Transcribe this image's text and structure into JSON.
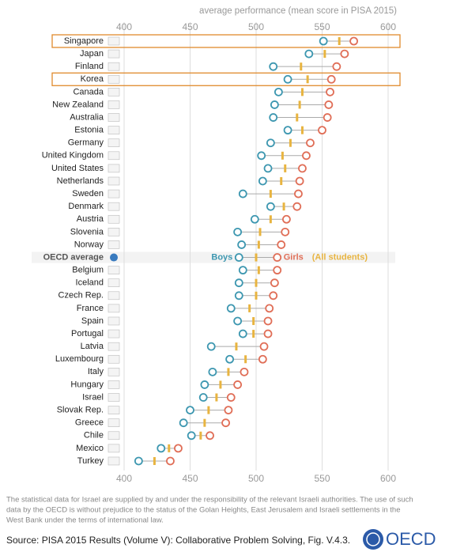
{
  "chart_data": {
    "type": "dumbbell",
    "x_label": "average performance (mean score in PISA 2015)",
    "categories": [
      "Singapore",
      "Japan",
      "Finland",
      "Korea",
      "Canada",
      "New Zealand",
      "Australia",
      "Estonia",
      "Germany",
      "United Kingdom",
      "United States",
      "Netherlands",
      "Sweden",
      "Denmark",
      "Austria",
      "Slovenia",
      "Norway",
      "OECD average",
      "Belgium",
      "Iceland",
      "Czech Rep.",
      "France",
      "Spain",
      "Portugal",
      "Latvia",
      "Luxembourg",
      "Italy",
      "Hungary",
      "Israel",
      "Slovak Rep.",
      "Greece",
      "Chile",
      "Mexico",
      "Turkey"
    ],
    "series": [
      {
        "name": "Boys",
        "color": "#3d97b0",
        "values": [
          551,
          540,
          513,
          524,
          517,
          514,
          513,
          524,
          511,
          504,
          509,
          505,
          490,
          511,
          499,
          486,
          489,
          487,
          490,
          487,
          487,
          481,
          486,
          490,
          466,
          480,
          467,
          461,
          460,
          450,
          445,
          451,
          428,
          411
        ]
      },
      {
        "name": "Girls",
        "color": "#e06e57",
        "values": [
          574,
          567,
          561,
          557,
          556,
          555,
          554,
          550,
          541,
          538,
          535,
          533,
          532,
          531,
          523,
          522,
          519,
          516,
          516,
          514,
          513,
          510,
          509,
          509,
          506,
          505,
          491,
          486,
          481,
          479,
          477,
          465,
          441,
          435
        ]
      },
      {
        "name": "(All students)",
        "color": "#e8b440",
        "values": [
          563,
          552,
          534,
          539,
          535,
          533,
          531,
          535,
          526,
          520,
          522,
          519,
          511,
          521,
          511,
          503,
          502,
          500,
          502,
          500,
          500,
          495,
          498,
          498,
          485,
          492,
          479,
          473,
          470,
          464,
          461,
          458,
          434,
          423
        ]
      }
    ],
    "xlim": [
      400,
      600
    ],
    "xticks": [
      400,
      450,
      500,
      550,
      600
    ],
    "grid": true,
    "highlight": [
      0,
      3
    ],
    "emphasis": 17,
    "highlight_color": "#e08a2c",
    "note": [
      "The statistical data for Israel are supplied by and under the responsibility of the relevant Israeli authorities. The use of such",
      "data by the OECD is without prejudice to the status of the Golan Heights, East Jerusalem and Israeli settlements in the",
      "West Bank under the terms of international law."
    ],
    "source": "Source: PISA 2015 Results (Volume V): Collaborative Problem Solving, Fig. V.4.3.",
    "logo": "OECD"
  }
}
